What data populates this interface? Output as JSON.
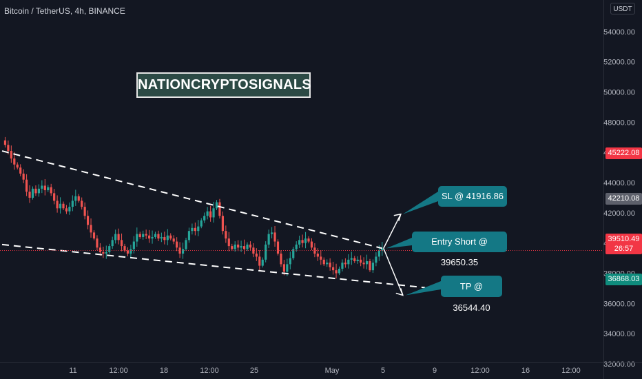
{
  "symbol_title": "Bitcoin / TetherUS, 4h, BINANCE",
  "watermark": "NATIONCRYPTOSIGNALS",
  "price_unit": "USDT",
  "callouts": {
    "sl": "SL @ 41916.86",
    "entry": "Entry Short @ 39650.35",
    "tp": "TP @ 36544.40"
  },
  "badges": {
    "high_marker": "45222.08",
    "mid_marker": "42210.08",
    "last_price": "39510.49",
    "countdown": "26:57",
    "low_marker": "36868.03"
  },
  "colors": {
    "background": "#131722",
    "up_candle": "#26a69a",
    "down_candle": "#ef5350",
    "callout": "#147885",
    "watermark_bg": "#2c4a45"
  },
  "chart_data": {
    "type": "candlestick",
    "title": "Bitcoin / TetherUS, 4h, BINANCE",
    "y_axis_unit": "USDT",
    "ylim": [
      31500,
      55000
    ],
    "y_ticks": [
      "54000.00",
      "52000.00",
      "50000.00",
      "48000.00",
      "46000.00",
      "44000.00",
      "42000.00",
      "40000.00",
      "38000.00",
      "36000.00",
      "34000.00",
      "32000.00"
    ],
    "y_tick_values": [
      54000,
      52000,
      50000,
      48000,
      46000,
      44000,
      42000,
      40000,
      38000,
      36000,
      34000,
      32000
    ],
    "x_ticks": [
      "11",
      "12:00",
      "18",
      "12:00",
      "25",
      "May",
      "5",
      "9",
      "12:00",
      "16",
      "12:00"
    ],
    "grid": false,
    "price_path": [
      [
        0,
        46800
      ],
      [
        1,
        46500
      ],
      [
        2,
        46100
      ],
      [
        3,
        45600
      ],
      [
        4,
        45200
      ],
      [
        5,
        45000
      ],
      [
        6,
        44600
      ],
      [
        7,
        44200
      ],
      [
        8,
        43400
      ],
      [
        9,
        43000
      ],
      [
        10,
        43600
      ],
      [
        11,
        43300
      ],
      [
        12,
        43600
      ],
      [
        13,
        43800
      ],
      [
        14,
        43500
      ],
      [
        15,
        43700
      ],
      [
        16,
        43300
      ],
      [
        17,
        42800
      ],
      [
        18,
        42300
      ],
      [
        19,
        42600
      ],
      [
        20,
        42300
      ],
      [
        21,
        42100
      ],
      [
        22,
        42400
      ],
      [
        23,
        42800
      ],
      [
        24,
        43100
      ],
      [
        25,
        42800
      ],
      [
        26,
        42400
      ],
      [
        27,
        41800
      ],
      [
        28,
        41200
      ],
      [
        29,
        40700
      ],
      [
        30,
        40300
      ],
      [
        31,
        39700
      ],
      [
        32,
        39400
      ],
      [
        33,
        39300
      ],
      [
        34,
        39400
      ],
      [
        35,
        39800
      ],
      [
        36,
        40200
      ],
      [
        37,
        40600
      ],
      [
        38,
        40200
      ],
      [
        39,
        39800
      ],
      [
        40,
        39500
      ],
      [
        41,
        39300
      ],
      [
        42,
        39600
      ],
      [
        43,
        40100
      ],
      [
        44,
        40600
      ],
      [
        45,
        40400
      ],
      [
        46,
        40600
      ],
      [
        47,
        40500
      ],
      [
        48,
        40300
      ],
      [
        49,
        40400
      ],
      [
        50,
        40600
      ],
      [
        51,
        40300
      ],
      [
        52,
        40400
      ],
      [
        53,
        40200
      ],
      [
        54,
        40500
      ],
      [
        55,
        40300
      ],
      [
        56,
        40100
      ],
      [
        57,
        39700
      ],
      [
        58,
        39300
      ],
      [
        59,
        39600
      ],
      [
        60,
        40200
      ],
      [
        61,
        40800
      ],
      [
        62,
        41000
      ],
      [
        63,
        40800
      ],
      [
        64,
        41100
      ],
      [
        65,
        41500
      ],
      [
        66,
        41800
      ],
      [
        67,
        42100
      ],
      [
        68,
        41700
      ],
      [
        69,
        42300
      ],
      [
        70,
        42700
      ],
      [
        71,
        41800
      ],
      [
        72,
        40800
      ],
      [
        73,
        40300
      ],
      [
        74,
        39800
      ],
      [
        75,
        39600
      ],
      [
        76,
        39900
      ],
      [
        77,
        39700
      ],
      [
        78,
        39800
      ],
      [
        79,
        39600
      ],
      [
        80,
        39900
      ],
      [
        81,
        39700
      ],
      [
        82,
        39300
      ],
      [
        83,
        39100
      ],
      [
        84,
        38500
      ],
      [
        85,
        38900
      ],
      [
        86,
        39900
      ],
      [
        87,
        40600
      ],
      [
        88,
        40700
      ],
      [
        89,
        40100
      ],
      [
        90,
        39300
      ],
      [
        91,
        38600
      ],
      [
        92,
        38100
      ],
      [
        93,
        38600
      ],
      [
        94,
        39000
      ],
      [
        95,
        39600
      ],
      [
        96,
        39900
      ],
      [
        97,
        40200
      ],
      [
        98,
        40000
      ],
      [
        99,
        40300
      ],
      [
        100,
        40100
      ],
      [
        101,
        39700
      ],
      [
        102,
        39300
      ],
      [
        103,
        39100
      ],
      [
        104,
        38900
      ],
      [
        105,
        38600
      ],
      [
        106,
        38700
      ],
      [
        107,
        38400
      ],
      [
        108,
        38200
      ],
      [
        109,
        38000
      ],
      [
        110,
        38300
      ],
      [
        111,
        38700
      ],
      [
        112,
        38600
      ],
      [
        113,
        38900
      ],
      [
        114,
        39000
      ],
      [
        115,
        38800
      ],
      [
        116,
        38900
      ],
      [
        117,
        38700
      ],
      [
        118,
        38600
      ],
      [
        119,
        38800
      ],
      [
        120,
        38200
      ],
      [
        121,
        38700
      ],
      [
        122,
        39100
      ],
      [
        123,
        39500
      ],
      [
        124,
        39650
      ]
    ],
    "annotations": {
      "upper_trendline": [
        [
          0,
          46100
        ],
        [
          124,
          39650
        ]
      ],
      "lower_trendline": [
        [
          0,
          39900
        ],
        [
          138,
          37050
        ]
      ],
      "stop_loss": 41916.86,
      "entry_short": 39650.35,
      "take_profit": 36544.4
    }
  }
}
